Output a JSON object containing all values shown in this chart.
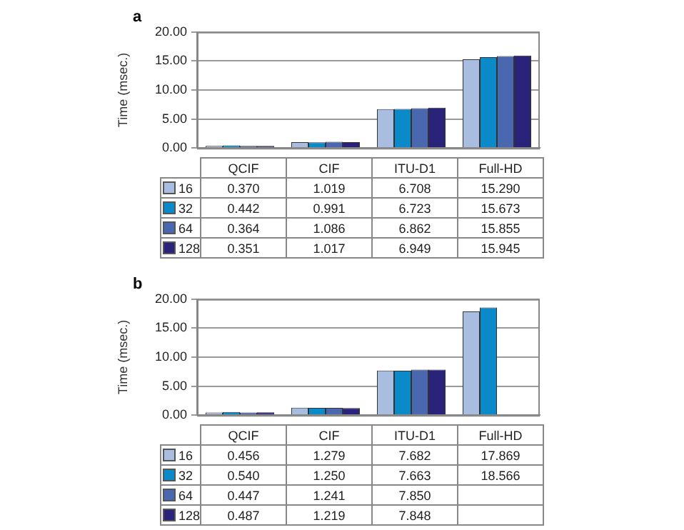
{
  "chart_data": [
    {
      "type": "bar",
      "title": "a",
      "ylabel": "Time (msec.)",
      "categories": [
        "QCIF",
        "CIF",
        "ITU-D1",
        "Full-HD"
      ],
      "ylim": [
        0,
        20
      ],
      "yticks": [
        {
          "value": 0,
          "label": "0.00"
        },
        {
          "value": 5,
          "label": "5.00"
        },
        {
          "value": 10,
          "label": "10.00"
        },
        {
          "value": 15,
          "label": "15.00"
        },
        {
          "value": 20,
          "label": "20.00"
        }
      ],
      "grid": "y",
      "legend": "bottom left",
      "tick_labels": "y",
      "series": [
        {
          "name": "16",
          "color": "#a9bde0",
          "values": [
            0.37,
            1.019,
            6.708,
            15.29
          ],
          "value_labels": [
            "0.370",
            "1.019",
            "6.708",
            "15.290"
          ]
        },
        {
          "name": "32",
          "color": "#0a8ac8",
          "values": [
            0.442,
            0.991,
            6.723,
            15.673
          ],
          "value_labels": [
            "0.442",
            "0.991",
            "6.723",
            "15.673"
          ]
        },
        {
          "name": "64",
          "color": "#4a68b0",
          "values": [
            0.364,
            1.086,
            6.862,
            15.855
          ],
          "value_labels": [
            "0.364",
            "1.086",
            "6.862",
            "15.855"
          ]
        },
        {
          "name": "128",
          "color": "#2a237a",
          "values": [
            0.351,
            1.017,
            6.949,
            15.945
          ],
          "value_labels": [
            "0.351",
            "1.017",
            "6.949",
            "15.945"
          ]
        }
      ]
    },
    {
      "type": "bar",
      "title": "b",
      "ylabel": "Time (msec.)",
      "categories": [
        "QCIF",
        "CIF",
        "ITU-D1",
        "Full-HD"
      ],
      "ylim": [
        0,
        20
      ],
      "yticks": [
        {
          "value": 0,
          "label": "0.00"
        },
        {
          "value": 5,
          "label": "5.00"
        },
        {
          "value": 10,
          "label": "10.00"
        },
        {
          "value": 15,
          "label": "15.00"
        },
        {
          "value": 20,
          "label": "20.00"
        }
      ],
      "grid": "y",
      "legend": "bottom left",
      "tick_labels": "y",
      "series": [
        {
          "name": "16",
          "color": "#a9bde0",
          "values": [
            0.456,
            1.279,
            7.682,
            17.869
          ],
          "value_labels": [
            "0.456",
            "1.279",
            "7.682",
            "17.869"
          ]
        },
        {
          "name": "32",
          "color": "#0a8ac8",
          "values": [
            0.54,
            1.25,
            7.663,
            18.566
          ],
          "value_labels": [
            "0.540",
            "1.250",
            "7.663",
            "18.566"
          ]
        },
        {
          "name": "64",
          "color": "#4a68b0",
          "values": [
            0.447,
            1.241,
            7.85,
            null
          ],
          "value_labels": [
            "0.447",
            "1.241",
            "7.850",
            null
          ]
        },
        {
          "name": "128",
          "color": "#2a237a",
          "values": [
            0.487,
            1.219,
            7.848,
            null
          ],
          "value_labels": [
            "0.487",
            "1.219",
            "7.848",
            null
          ]
        }
      ]
    }
  ]
}
